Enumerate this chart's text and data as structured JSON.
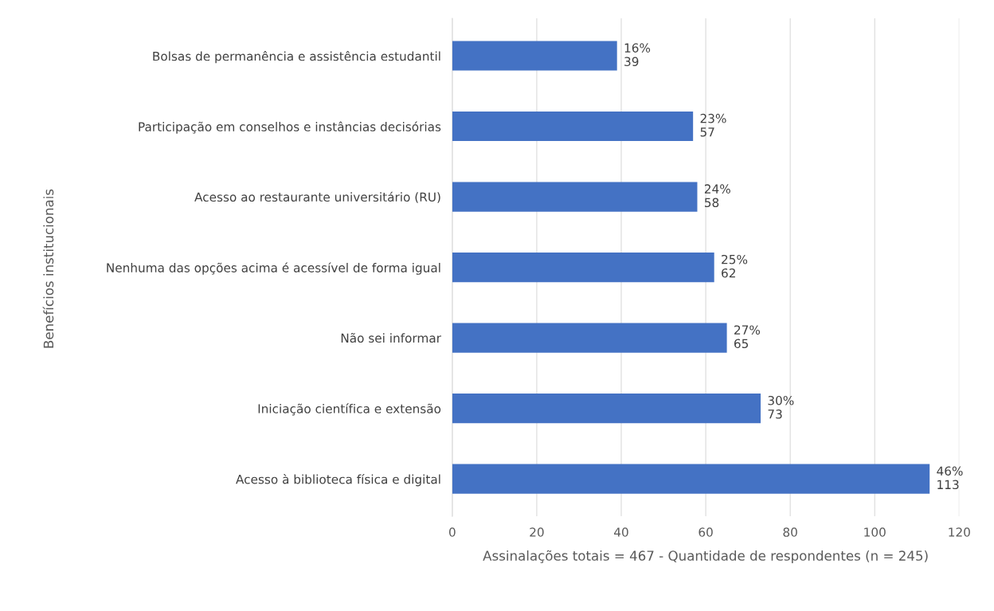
{
  "chart_data": {
    "type": "bar",
    "orientation": "horizontal",
    "categories": [
      "Bolsas de permanência e assistência estudantil",
      "Participação em conselhos e instâncias decisórias",
      "Acesso ao restaurante universitário (RU)",
      "Nenhuma das opções acima é acessível de forma igual",
      "Não sei informar",
      "Iniciação científica e extensão",
      "Acesso à biblioteca física e digital"
    ],
    "values": [
      39,
      57,
      58,
      62,
      65,
      73,
      113
    ],
    "value_labels": [
      "16%\n39",
      "23%\n57",
      "24%\n58",
      "25%\n62",
      "27%\n65",
      "30%\n73",
      "46%\n113"
    ],
    "color": "#4472c4",
    "xlim": [
      0,
      120
    ],
    "xticks": [
      0,
      20,
      40,
      60,
      80,
      100,
      120
    ],
    "grid": "x",
    "xlabel": "Assinalações totais = 467 - Quantidade de respondentes (n = 245)",
    "ylabel": "Benefícios institucionais"
  }
}
